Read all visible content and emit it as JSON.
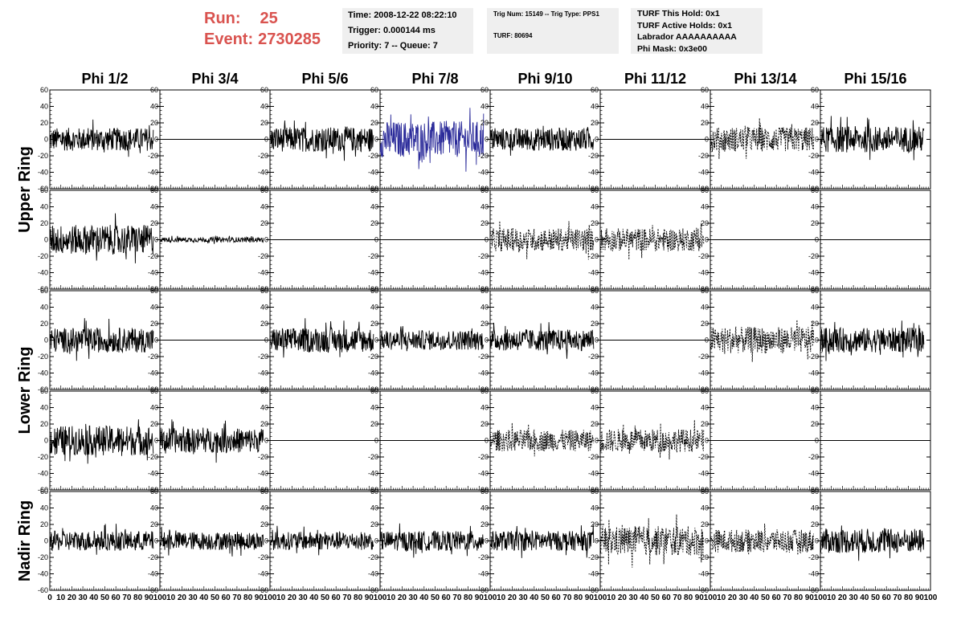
{
  "header": {
    "run_label": "Run:",
    "run_value": "25",
    "event_label": "Event:",
    "event_value": "2730285",
    "run_color": "#d9534f",
    "time": "Time: 2008-12-22 08:22:10",
    "trigger": "Trigger: 0.000144 ms",
    "priority": "Priority: 7 -- Queue: 7",
    "trig_num": "Trig Num: 15149 -- Trig Type: PPS1",
    "turf": "TURF: 80694",
    "turf_hold": "TURF This Hold: 0x1",
    "turf_active": "TURF Active Holds: 0x1",
    "labrador": "Labrador AAAAAAAAAA",
    "phi_mask": "Phi Mask: 0x3e00"
  },
  "chart_data": {
    "type": "line",
    "columns": [
      "Phi 1/2",
      "Phi 3/4",
      "Phi 5/6",
      "Phi 7/8",
      "Phi 9/10",
      "Phi 11/12",
      "Phi 13/14",
      "Phi 15/16"
    ],
    "ring_labels": [
      {
        "label": "Upper Ring",
        "rows": [
          0,
          1
        ]
      },
      {
        "label": "Lower Ring",
        "rows": [
          2,
          3
        ]
      },
      {
        "label": "Nadir Ring",
        "rows": [
          4
        ]
      }
    ],
    "ylim": [
      -60,
      60
    ],
    "xlim": [
      0,
      100
    ],
    "y_ticks": [
      60,
      40,
      20,
      0,
      -20,
      -40,
      -60
    ],
    "x_ticks": [
      0,
      10,
      20,
      30,
      40,
      50,
      60,
      70,
      80,
      90,
      100
    ],
    "colors": {
      "solid": "#000000",
      "highlight": "#2b2b9a"
    },
    "panels": [
      [
        {
          "style": "solid",
          "amp": 14
        },
        {
          "style": "flat"
        },
        {
          "style": "solid",
          "amp": 15
        },
        {
          "style": "highlight",
          "amp": 22
        },
        {
          "style": "solid",
          "amp": 14
        },
        {
          "style": "flat"
        },
        {
          "style": "dashed",
          "amp": 15
        },
        {
          "style": "solid",
          "amp": 16
        }
      ],
      [
        {
          "style": "solid",
          "amp": 18
        },
        {
          "style": "solid",
          "amp": 3
        },
        {
          "style": "flat"
        },
        {
          "style": "flat"
        },
        {
          "style": "dashed",
          "amp": 14
        },
        {
          "style": "dashed",
          "amp": 14
        },
        {
          "style": "flat"
        },
        {
          "style": "flat"
        }
      ],
      [
        {
          "style": "solid",
          "amp": 15
        },
        {
          "style": "flat"
        },
        {
          "style": "solid",
          "amp": 15
        },
        {
          "style": "solid",
          "amp": 12
        },
        {
          "style": "solid",
          "amp": 13
        },
        {
          "style": "flat"
        },
        {
          "style": "dashed",
          "amp": 16
        },
        {
          "style": "solid",
          "amp": 15
        }
      ],
      [
        {
          "style": "solid",
          "amp": 18
        },
        {
          "style": "solid",
          "amp": 15
        },
        {
          "style": "flat"
        },
        {
          "style": "flat"
        },
        {
          "style": "dashed",
          "amp": 13
        },
        {
          "style": "dashed",
          "amp": 14
        },
        {
          "style": "flat"
        },
        {
          "style": "flat"
        }
      ],
      [
        {
          "style": "solid",
          "amp": 12
        },
        {
          "style": "solid",
          "amp": 11
        },
        {
          "style": "solid",
          "amp": 11
        },
        {
          "style": "solid",
          "amp": 12
        },
        {
          "style": "solid",
          "amp": 12
        },
        {
          "style": "dashed",
          "amp": 18
        },
        {
          "style": "dashed",
          "amp": 14
        },
        {
          "style": "solid",
          "amp": 15
        }
      ]
    ]
  }
}
